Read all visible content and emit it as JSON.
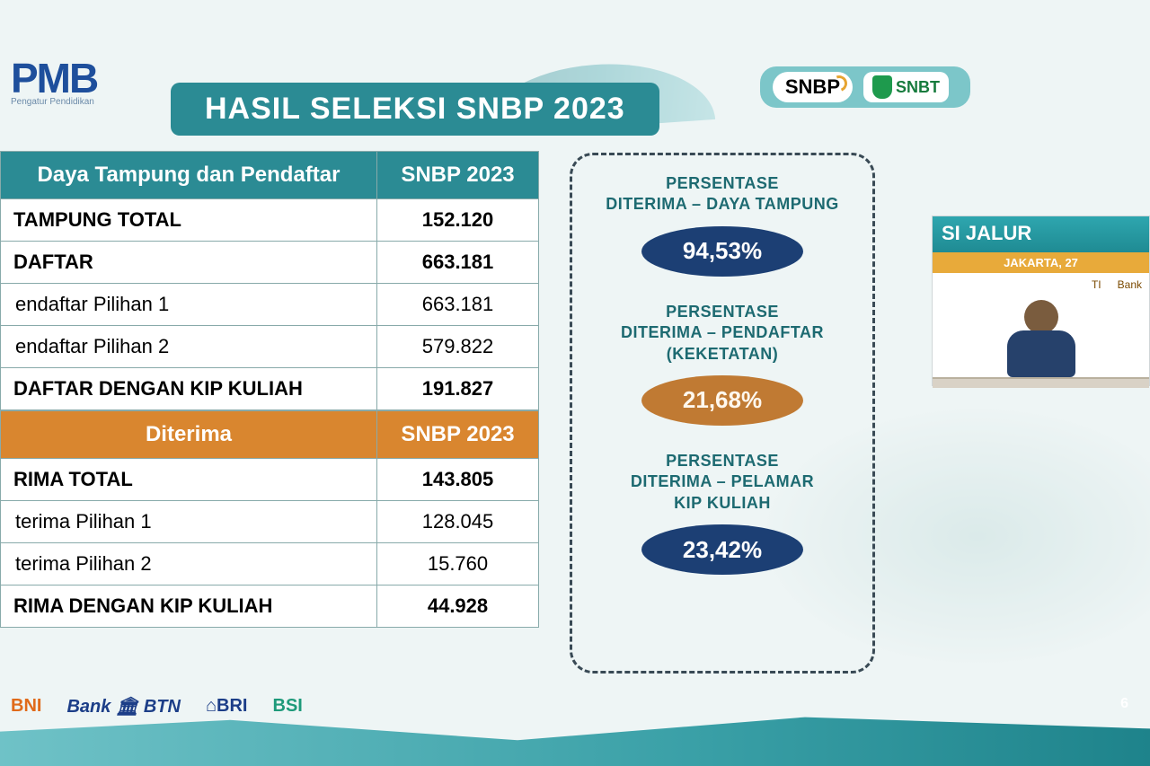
{
  "logo": {
    "text": "PMB",
    "subtitle": "Pengatur Pendidikan"
  },
  "title": "HASIL SELEKSI SNBP 2023",
  "badges": {
    "snbp": "SNBP",
    "snbt": "SNBT"
  },
  "table1": {
    "header_left": "Daya Tampung dan Pendaftar",
    "header_right": "SNBP 2023",
    "rows": [
      {
        "label": "TAMPUNG TOTAL",
        "value": "152.120",
        "bold": true
      },
      {
        "label": "DAFTAR",
        "value": "663.181",
        "bold": true
      },
      {
        "label": "endaftar Pilihan 1",
        "value": "663.181",
        "bold": false
      },
      {
        "label": "endaftar Pilihan 2",
        "value": "579.822",
        "bold": false
      },
      {
        "label": "DAFTAR DENGAN KIP KULIAH",
        "value": "191.827",
        "bold": true
      }
    ]
  },
  "table2": {
    "header_left": "Diterima",
    "header_right": "SNBP 2023",
    "rows": [
      {
        "label": "RIMA TOTAL",
        "value": "143.805",
        "bold": true
      },
      {
        "label": "terima Pilihan 1",
        "value": "128.045",
        "bold": false
      },
      {
        "label": "terima Pilihan 2",
        "value": "15.760",
        "bold": false
      },
      {
        "label": "RIMA DENGAN KIP KULIAH",
        "value": "44.928",
        "bold": true
      }
    ]
  },
  "percent_panel": {
    "items": [
      {
        "line1": "PERSENTASE",
        "line2": "DITERIMA – DAYA TAMPUNG",
        "value": "94,53%",
        "color": "navy"
      },
      {
        "line1": "PERSENTASE",
        "line2": "DITERIMA – PENDAFTAR",
        "line3": "(KEKETATAN)",
        "value": "21,68%",
        "color": "orange"
      },
      {
        "line1": "PERSENTASE",
        "line2": "DITERIMA – PELAMAR",
        "line3": "KIP KULIAH",
        "value": "23,42%",
        "color": "navy"
      }
    ]
  },
  "thumbnail": {
    "title_fragment": "SI JALUR",
    "subtitle": "JAKARTA, 27",
    "logos": [
      "TI",
      "Bank"
    ]
  },
  "sponsors": {
    "bni": "BNI",
    "btn": "Bank 🏛 BTN",
    "bri": "⌂BRI",
    "bsi": "BSI"
  },
  "page_number": "6",
  "colors": {
    "teal_header": "#2b8b94",
    "orange_header": "#d9862f",
    "pill_navy": "#1c3f74",
    "pill_orange": "#c07a33",
    "label_teal": "#1d6a71"
  }
}
